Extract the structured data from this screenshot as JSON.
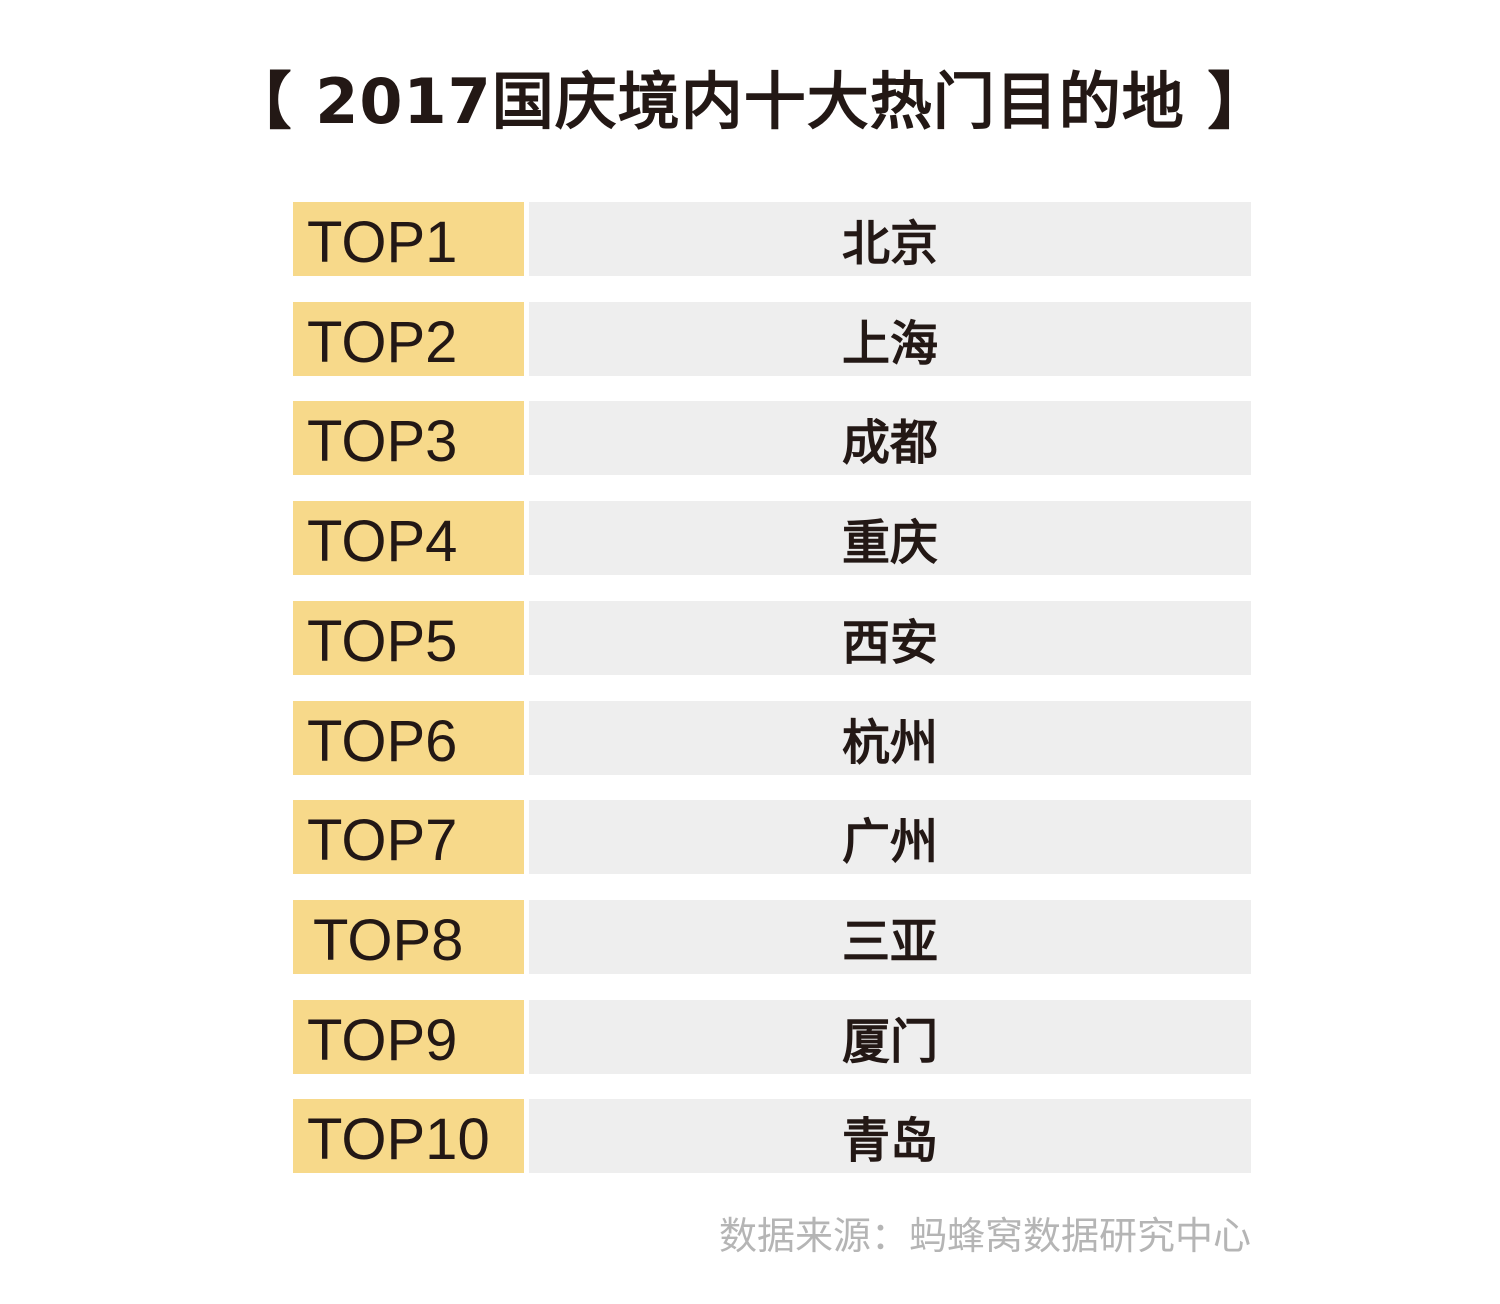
{
  "title": "【 2017国庆境内十大热门目的地 】",
  "chart_data": {
    "type": "table",
    "columns": [
      "rank",
      "city"
    ],
    "rows": [
      {
        "rank": "TOP1",
        "city": "北京"
      },
      {
        "rank": "TOP2",
        "city": "上海"
      },
      {
        "rank": "TOP3",
        "city": "成都"
      },
      {
        "rank": "TOP4",
        "city": "重庆"
      },
      {
        "rank": "TOP5",
        "city": "西安"
      },
      {
        "rank": "TOP6",
        "city": "杭州"
      },
      {
        "rank": "TOP7",
        "city": "广州"
      },
      {
        "rank": "TOP8",
        "city": "三亚"
      },
      {
        "rank": "TOP9",
        "city": "厦门"
      },
      {
        "rank": "TOP10",
        "city": "青岛"
      }
    ]
  },
  "source": "数据来源：蚂蜂窝数据研究中心",
  "colors": {
    "rank_background": "#f7d98a",
    "city_background": "#eeeeee",
    "text": "#231815",
    "source_text": "#b5b5b5"
  }
}
